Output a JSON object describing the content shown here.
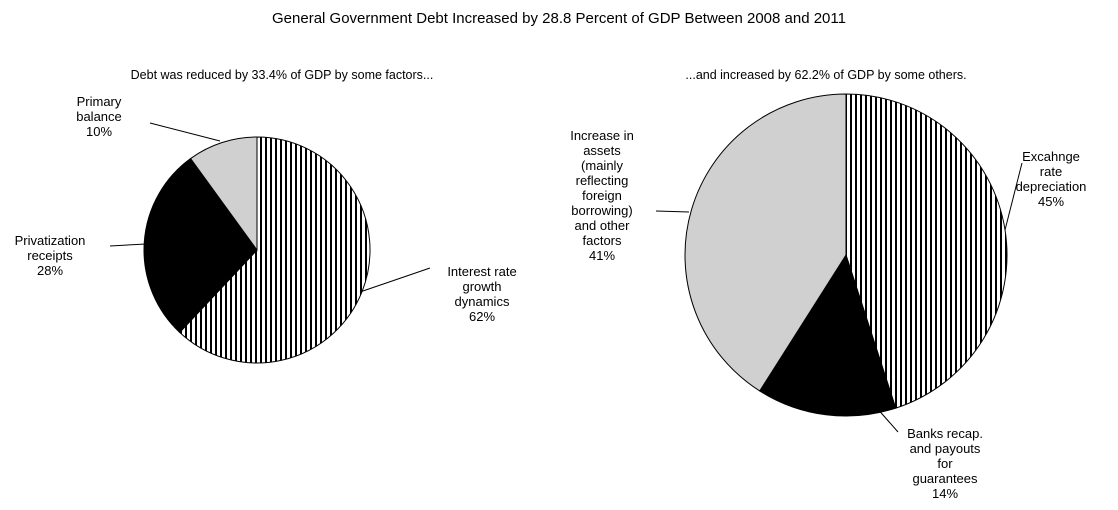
{
  "title": "General Government Debt Increased by 28.8 Percent of GDP Between 2008 and 2011",
  "chart_data": [
    {
      "type": "pie",
      "subtitle": "Debt was reduced by 33.4% of GDP by some factors...",
      "slices": [
        {
          "label": [
            "Interest rate",
            "growth",
            "dynamics"
          ],
          "percent_label": "62%",
          "value": 62,
          "fill": "hatch"
        },
        {
          "label": [
            "Privatization",
            "receipts"
          ],
          "percent_label": "28%",
          "value": 28,
          "fill": "#000000"
        },
        {
          "label": [
            "Primary",
            "balance"
          ],
          "percent_label": "10%",
          "value": 10,
          "fill": "#d0d0d0"
        }
      ]
    },
    {
      "type": "pie",
      "subtitle": "...and increased by 62.2% of GDP by some others.",
      "slices": [
        {
          "label": [
            "Excahnge",
            "rate",
            "depreciation"
          ],
          "percent_label": "45%",
          "value": 45,
          "fill": "hatch"
        },
        {
          "label": [
            "Banks recap.",
            "and payouts",
            "for",
            "guarantees"
          ],
          "percent_label": "14%",
          "value": 14,
          "fill": "#000000"
        },
        {
          "label": [
            "Increase in",
            "assets",
            "(mainly",
            "reflecting",
            "foreign",
            "borrowing)",
            "and other",
            "factors"
          ],
          "percent_label": "41%",
          "value": 41,
          "fill": "#d0d0d0"
        }
      ]
    }
  ]
}
